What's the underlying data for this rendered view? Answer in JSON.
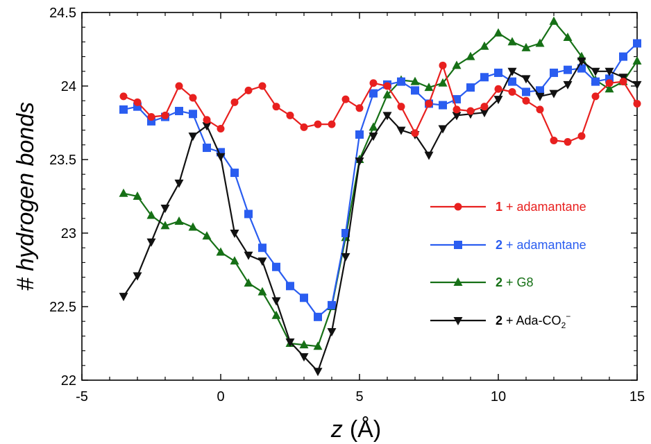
{
  "chart_data": {
    "type": "line",
    "xlabel": "z",
    "xlabel_unit": "(Å)",
    "ylabel": "# hydrogen bonds",
    "xlim": [
      -5,
      15
    ],
    "ylim": [
      22,
      24.5
    ],
    "xticks": [
      -5,
      0,
      5,
      10,
      15
    ],
    "yticks": [
      22,
      22.5,
      23,
      23.5,
      24,
      24.5
    ],
    "xtick_labels": [
      "-5",
      "0",
      "5",
      "10",
      "15"
    ],
    "ytick_labels": [
      "22",
      "22.5",
      "23",
      "23.5",
      "24",
      "24.5"
    ],
    "grid": false,
    "legend_position": "right",
    "x": [
      -3.5,
      -3,
      -2.5,
      -2,
      -1.5,
      -1,
      -0.5,
      0,
      0.5,
      1,
      1.5,
      2,
      2.5,
      3,
      3.5,
      4,
      4.5,
      5,
      5.5,
      6,
      6.5,
      7,
      7.5,
      8,
      8.5,
      9,
      9.5,
      10,
      10.5,
      11,
      11.5,
      12,
      12.5,
      13,
      13.5,
      14,
      14.5,
      15
    ],
    "series": [
      {
        "name_bold": "1",
        "name_rest": " + adamantane",
        "color": "#e8201f",
        "marker": "circle",
        "values": [
          23.93,
          23.89,
          23.79,
          23.8,
          24.0,
          23.92,
          23.77,
          23.71,
          23.89,
          23.97,
          24.0,
          23.86,
          23.8,
          23.72,
          23.74,
          23.74,
          23.91,
          23.85,
          24.02,
          24.0,
          23.86,
          23.68,
          23.88,
          24.14,
          23.84,
          23.83,
          23.86,
          23.98,
          23.96,
          23.9,
          23.84,
          23.63,
          23.62,
          23.66,
          23.93,
          24.02,
          24.03,
          23.88
        ]
      },
      {
        "name_bold": "2",
        "name_rest": " + adamantane",
        "color": "#2a5df0",
        "marker": "square",
        "values": [
          23.84,
          23.86,
          23.76,
          23.79,
          23.83,
          23.81,
          23.58,
          23.55,
          23.41,
          23.13,
          22.9,
          22.77,
          22.64,
          22.56,
          22.43,
          22.51,
          23.0,
          23.67,
          23.95,
          24.01,
          24.03,
          23.97,
          23.88,
          23.87,
          23.91,
          23.99,
          24.06,
          24.09,
          24.03,
          23.96,
          23.97,
          24.09,
          24.11,
          24.12,
          24.03,
          24.05,
          24.2,
          24.29
        ]
      },
      {
        "name_bold": "2",
        "name_rest": " + G8",
        "color": "#167016",
        "marker": "triangle-up",
        "values": [
          23.27,
          23.25,
          23.12,
          23.05,
          23.08,
          23.04,
          22.98,
          22.87,
          22.81,
          22.66,
          22.6,
          22.44,
          22.25,
          22.24,
          22.23,
          22.5,
          22.97,
          23.5,
          23.72,
          23.94,
          24.04,
          24.03,
          23.99,
          24.02,
          24.14,
          24.2,
          24.27,
          24.36,
          24.3,
          24.26,
          24.29,
          24.44,
          24.33,
          24.2,
          24.04,
          23.98,
          24.03,
          24.17
        ]
      },
      {
        "name_bold": "2",
        "name_rest": " + Ada-CO",
        "name_sub": "2",
        "name_sup": "−",
        "color": "#111111",
        "marker": "triangle-down",
        "values": [
          22.57,
          22.71,
          22.94,
          23.17,
          23.34,
          23.66,
          23.73,
          23.52,
          23.0,
          22.85,
          22.81,
          22.54,
          22.26,
          22.16,
          22.06,
          22.33,
          22.84,
          23.49,
          23.66,
          23.8,
          23.7,
          23.67,
          23.53,
          23.71,
          23.8,
          23.81,
          23.82,
          23.91,
          24.1,
          24.05,
          23.93,
          23.95,
          24.01,
          24.17,
          24.1,
          24.1,
          24.06,
          24.01
        ]
      }
    ]
  }
}
